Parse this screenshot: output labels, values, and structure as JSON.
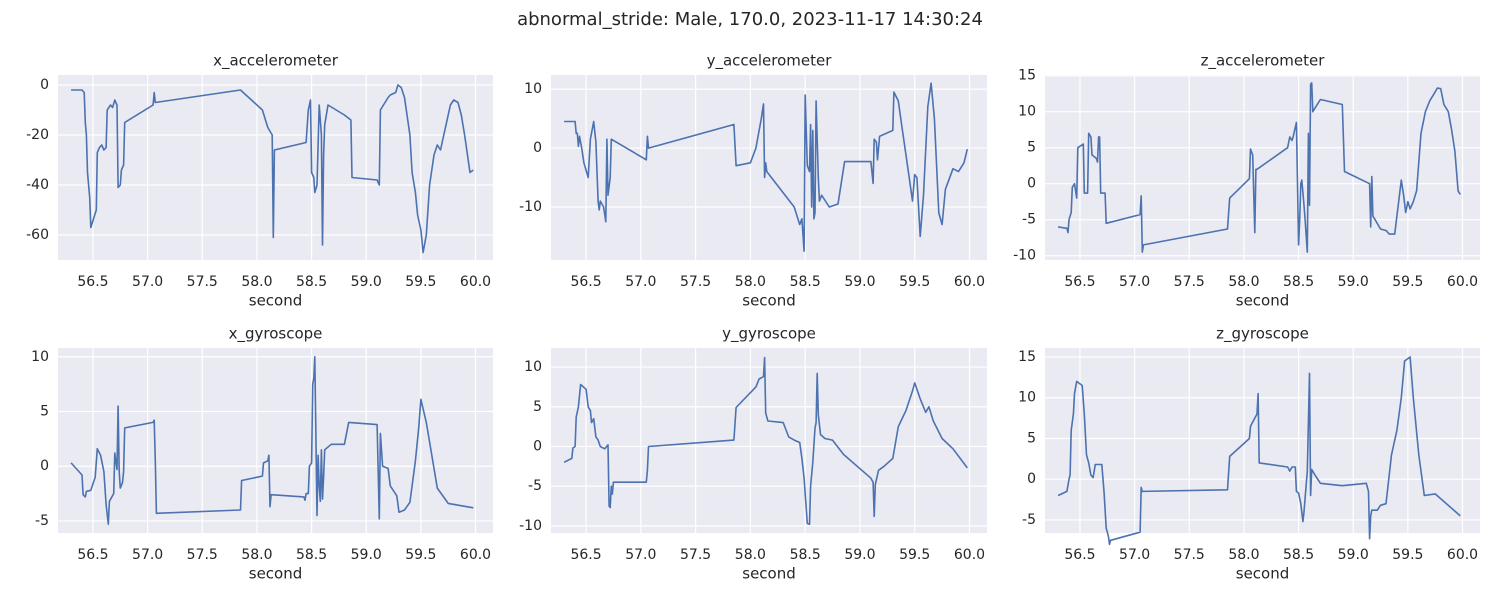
{
  "title": "abnormal_stride: Male, 170.0, 2023-11-17 14:30:24",
  "chart_data": [
    {
      "type": "line",
      "title": "x_accelerometer",
      "xlabel": "second",
      "color": "#4c72b0",
      "grid": true,
      "xlim": [
        56.18,
        60.16
      ],
      "ylim": [
        -70,
        4
      ],
      "xticks": [
        56.5,
        {
          "value": 57,
          "label": "57.0"
        },
        57.5,
        {
          "value": 58,
          "label": "58.0"
        },
        58.5,
        {
          "value": 59,
          "label": "59.0"
        },
        59.5,
        {
          "value": 60,
          "label": "60.0"
        }
      ],
      "yticks": [
        -60,
        -40,
        -20,
        0
      ],
      "x": [
        56.3,
        56.4,
        56.42,
        56.43,
        56.44,
        56.45,
        56.47,
        56.48,
        56.53,
        56.54,
        56.56,
        56.58,
        56.6,
        56.62,
        56.63,
        56.66,
        56.68,
        56.7,
        56.72,
        56.73,
        56.75,
        56.76,
        56.78,
        56.79,
        57.05,
        57.06,
        57.07,
        57.85,
        58.05,
        58.1,
        58.14,
        58.15,
        58.16,
        58.45,
        58.47,
        58.49,
        58.5,
        58.52,
        58.53,
        58.55,
        58.57,
        58.59,
        58.6,
        58.61,
        58.62,
        58.65,
        58.8,
        58.86,
        58.87,
        59.1,
        59.12,
        59.13,
        59.2,
        59.22,
        59.27,
        59.29,
        59.32,
        59.35,
        59.4,
        59.42,
        59.45,
        59.47,
        59.5,
        59.52,
        59.55,
        59.58,
        59.62,
        59.65,
        59.68,
        59.72,
        59.77,
        59.8,
        59.84,
        59.87,
        59.9,
        59.95,
        59.98
      ],
      "values": [
        -2,
        -2,
        -3,
        -15,
        -20,
        -35,
        -45,
        -57,
        -50,
        -27,
        -25,
        -24,
        -26,
        -25,
        -10,
        -8,
        -9,
        -6,
        -8,
        -41,
        -40,
        -34,
        -32,
        -15,
        -8,
        -3,
        -7,
        -2,
        -10,
        -17,
        -20,
        -61,
        -26,
        -23,
        -10,
        -6,
        -35,
        -37,
        -43,
        -40,
        -8,
        -20,
        -64,
        -28,
        -16,
        -8,
        -12,
        -14,
        -37,
        -38,
        -40,
        -10,
        -5,
        -4,
        -3,
        0,
        -1,
        -5,
        -20,
        -35,
        -43,
        -52,
        -58,
        -67,
        -60,
        -40,
        -28,
        -24,
        -26,
        -18,
        -8,
        -6,
        -7,
        -12,
        -20,
        -35,
        -34
      ]
    },
    {
      "type": "line",
      "title": "y_accelerometer",
      "xlabel": "second",
      "color": "#4c72b0",
      "grid": true,
      "xlim": [
        56.18,
        60.16
      ],
      "ylim": [
        -19,
        12.4
      ],
      "xticks": [
        56.5,
        {
          "value": 57,
          "label": "57.0"
        },
        57.5,
        {
          "value": 58,
          "label": "58.0"
        },
        58.5,
        {
          "value": 59,
          "label": "59.0"
        },
        59.5,
        {
          "value": 60,
          "label": "60.0"
        }
      ],
      "yticks": [
        -10,
        0,
        10
      ],
      "x": [
        56.3,
        56.4,
        56.41,
        56.42,
        56.43,
        56.44,
        56.46,
        56.48,
        56.52,
        56.54,
        56.57,
        56.59,
        56.61,
        56.62,
        56.63,
        56.66,
        56.68,
        56.69,
        56.7,
        56.72,
        56.73,
        57.05,
        57.06,
        57.07,
        57.85,
        57.87,
        58.0,
        58.05,
        58.1,
        58.12,
        58.13,
        58.14,
        58.15,
        58.4,
        58.45,
        58.47,
        58.49,
        58.5,
        58.52,
        58.54,
        58.55,
        58.56,
        58.57,
        58.58,
        58.59,
        58.6,
        58.62,
        58.63,
        58.65,
        58.72,
        58.8,
        58.86,
        59.1,
        59.12,
        59.13,
        59.15,
        59.16,
        59.18,
        59.3,
        59.31,
        59.35,
        59.38,
        59.45,
        59.48,
        59.5,
        59.52,
        59.55,
        59.58,
        59.62,
        59.65,
        59.68,
        59.72,
        59.75,
        59.78,
        59.85,
        59.9,
        59.95,
        59.98
      ],
      "values": [
        4.5,
        4.5,
        2.5,
        2.5,
        0.3,
        2,
        0,
        -2.5,
        -5,
        1.5,
        4.5,
        1,
        -9,
        -10.5,
        -9,
        -10,
        -12.5,
        1.5,
        -8,
        -5,
        1.5,
        -2,
        2,
        0,
        4,
        -3,
        -2.5,
        0,
        5,
        7.5,
        -5,
        -2.5,
        -4,
        -10,
        -13,
        -12,
        -17.5,
        9,
        -3,
        -4,
        4,
        -10,
        3,
        -12,
        -11,
        8,
        -5,
        -9,
        -8,
        -10,
        -9.5,
        -2.3,
        -2.3,
        -6,
        1.5,
        1,
        -2,
        2,
        3,
        9.5,
        8,
        4,
        -5,
        -9,
        -4.5,
        -5,
        -15,
        -8,
        7,
        11,
        5,
        -11,
        -13,
        -7,
        -3.5,
        -4,
        -2.5,
        -0.2
      ]
    },
    {
      "type": "line",
      "title": "z_accelerometer",
      "xlabel": "second",
      "color": "#4c72b0",
      "grid": true,
      "xlim": [
        56.18,
        60.16
      ],
      "ylim": [
        -10.6,
        15.1
      ],
      "xticks": [
        56.5,
        {
          "value": 57,
          "label": "57.0"
        },
        57.5,
        {
          "value": 58,
          "label": "58.0"
        },
        58.5,
        {
          "value": 59,
          "label": "59.0"
        },
        59.5,
        {
          "value": 60,
          "label": "60.0"
        }
      ],
      "yticks": [
        -10,
        -5,
        0,
        5,
        10,
        15
      ],
      "x": [
        56.3,
        56.38,
        56.39,
        56.4,
        56.42,
        56.43,
        56.45,
        56.47,
        56.48,
        56.53,
        56.54,
        56.57,
        56.58,
        56.6,
        56.61,
        56.65,
        56.66,
        56.67,
        56.68,
        56.69,
        56.73,
        56.74,
        57.05,
        57.06,
        57.07,
        57.08,
        57.85,
        57.87,
        58.05,
        58.06,
        58.08,
        58.1,
        58.11,
        58.12,
        58.4,
        58.42,
        58.44,
        58.45,
        58.48,
        58.5,
        58.51,
        58.52,
        58.53,
        58.55,
        58.56,
        58.58,
        58.59,
        58.6,
        58.61,
        58.62,
        58.63,
        58.65,
        58.7,
        58.9,
        58.92,
        59.15,
        59.16,
        59.17,
        59.18,
        59.2,
        59.25,
        59.3,
        59.33,
        59.38,
        59.42,
        59.44,
        59.46,
        59.48,
        59.5,
        59.52,
        59.55,
        59.58,
        59.62,
        59.66,
        59.7,
        59.74,
        59.77,
        59.8,
        59.83,
        59.87,
        59.9,
        59.93,
        59.96,
        59.98
      ],
      "values": [
        -6,
        -6.2,
        -6.8,
        -5,
        -4,
        -0.5,
        0,
        -2,
        5,
        5.5,
        -1.3,
        -1.3,
        7,
        6.5,
        4,
        3.5,
        3,
        6.5,
        6.5,
        -1.3,
        -1.3,
        -5.5,
        -4.3,
        -1.7,
        -9.5,
        -8.5,
        -6.3,
        -2,
        0.7,
        4.8,
        4,
        -6.8,
        2,
        2,
        5,
        6.5,
        6,
        6.5,
        8.5,
        -8.5,
        -5,
        0,
        0.5,
        -3,
        -5,
        -9.5,
        7,
        -3,
        13.8,
        14,
        10,
        10.5,
        11.7,
        11,
        1.7,
        0,
        -6,
        1,
        -4.5,
        -5,
        -6.3,
        -6.5,
        -7,
        -7,
        -2,
        0.5,
        -1.5,
        -4,
        -2.5,
        -3.5,
        -2.5,
        -1,
        7,
        10,
        11.5,
        12.5,
        13.3,
        13.2,
        11,
        10,
        7.5,
        4.5,
        -1,
        -1.5
      ]
    },
    {
      "type": "line",
      "title": "x_gyroscope",
      "xlabel": "second",
      "color": "#4c72b0",
      "grid": true,
      "xlim": [
        56.18,
        60.16
      ],
      "ylim": [
        -6.1,
        10.8
      ],
      "xticks": [
        56.5,
        {
          "value": 57,
          "label": "57.0"
        },
        57.5,
        {
          "value": 58,
          "label": "58.0"
        },
        58.5,
        {
          "value": 59,
          "label": "59.0"
        },
        59.5,
        {
          "value": 60,
          "label": "60.0"
        }
      ],
      "yticks": [
        -5,
        0,
        5,
        10
      ],
      "x": [
        56.3,
        56.4,
        56.41,
        56.43,
        56.44,
        56.48,
        56.52,
        56.54,
        56.57,
        56.6,
        56.62,
        56.64,
        56.65,
        56.69,
        56.7,
        56.72,
        56.73,
        56.74,
        56.75,
        56.77,
        56.78,
        56.79,
        57.05,
        57.06,
        57.07,
        57.08,
        57.85,
        57.86,
        58.05,
        58.06,
        58.1,
        58.11,
        58.12,
        58.13,
        58.43,
        58.44,
        58.45,
        58.47,
        58.48,
        58.5,
        58.51,
        58.52,
        58.53,
        58.55,
        58.56,
        58.57,
        58.58,
        58.59,
        58.6,
        58.61,
        58.62,
        58.68,
        58.8,
        58.84,
        59.1,
        59.12,
        59.13,
        59.15,
        59.2,
        59.22,
        59.28,
        59.3,
        59.35,
        59.4,
        59.45,
        59.48,
        59.5,
        59.55,
        59.6,
        59.65,
        59.75,
        59.98
      ],
      "values": [
        0.3,
        -0.8,
        -2.6,
        -2.8,
        -2.3,
        -2.2,
        -1,
        1.6,
        1,
        -0.5,
        -3.5,
        -5.3,
        -3.2,
        -2.5,
        1.2,
        -0.3,
        5.5,
        -0.5,
        -2,
        -1.5,
        -0.5,
        3.5,
        4,
        4.2,
        0.5,
        -4.3,
        -4,
        -1.3,
        -0.9,
        0.3,
        0.5,
        1,
        -3.7,
        -2.6,
        -2.8,
        -3.1,
        -2.5,
        -2.5,
        0,
        0.3,
        7.5,
        8,
        10,
        -4.5,
        1,
        -1.8,
        -3.2,
        1.5,
        -3,
        -1,
        1.5,
        2,
        2,
        4,
        3.8,
        -4.8,
        3,
        0,
        -0.2,
        -1.8,
        -2.7,
        -4.2,
        -4,
        -3.3,
        0.5,
        3.5,
        6.1,
        4,
        1,
        -2,
        -3.4,
        -3.8
      ]
    },
    {
      "type": "line",
      "title": "y_gyroscope",
      "xlabel": "second",
      "color": "#4c72b0",
      "grid": true,
      "xlim": [
        56.18,
        60.16
      ],
      "ylim": [
        -10.9,
        12.4
      ],
      "xticks": [
        56.5,
        {
          "value": 57,
          "label": "57.0"
        },
        57.5,
        {
          "value": 58,
          "label": "58.0"
        },
        58.5,
        {
          "value": 59,
          "label": "59.0"
        },
        59.5,
        {
          "value": 60,
          "label": "60.0"
        }
      ],
      "yticks": [
        -10,
        -5,
        0,
        5,
        10
      ],
      "x": [
        56.3,
        56.37,
        56.38,
        56.4,
        56.41,
        56.43,
        56.45,
        56.5,
        56.52,
        56.54,
        56.55,
        56.57,
        56.59,
        56.61,
        56.63,
        56.67,
        56.7,
        56.71,
        56.72,
        56.73,
        56.74,
        56.75,
        57.05,
        57.06,
        57.07,
        57.85,
        57.87,
        58.05,
        58.08,
        58.12,
        58.13,
        58.14,
        58.16,
        58.3,
        58.35,
        58.4,
        58.45,
        58.47,
        58.49,
        58.5,
        58.52,
        58.54,
        58.55,
        58.57,
        58.59,
        58.6,
        58.61,
        58.62,
        58.64,
        58.68,
        58.75,
        58.85,
        59.1,
        59.12,
        59.13,
        59.14,
        59.17,
        59.22,
        59.3,
        59.35,
        59.42,
        59.48,
        59.5,
        59.55,
        59.6,
        59.63,
        59.67,
        59.75,
        59.85,
        59.98
      ],
      "values": [
        -2,
        -1.5,
        -0.2,
        0,
        3.7,
        5,
        7.8,
        7.2,
        5,
        4.5,
        3,
        3.5,
        1.2,
        0.8,
        0,
        -0.3,
        0.2,
        -7.5,
        -7.7,
        -5,
        -6,
        -4.5,
        -4.5,
        -3,
        0,
        0.8,
        4.9,
        7.5,
        8.5,
        8.8,
        11.2,
        4.2,
        3.2,
        3,
        1.2,
        0.8,
        0.5,
        -1.5,
        -4,
        -6,
        -9.7,
        -9.8,
        -5,
        -2,
        2.3,
        3,
        9.2,
        4,
        1.5,
        1,
        0.8,
        -1,
        -4,
        -4.5,
        -8.8,
        -4.8,
        -3,
        -2.5,
        -1.5,
        2.5,
        4.5,
        7,
        8,
        6,
        4.3,
        5,
        3.2,
        1,
        -0.3,
        -2.7
      ]
    },
    {
      "type": "line",
      "title": "z_gyroscope",
      "xlabel": "second",
      "color": "#4c72b0",
      "grid": true,
      "xlim": [
        56.18,
        60.16
      ],
      "ylim": [
        -6.6,
        16.1
      ],
      "xticks": [
        56.5,
        {
          "value": 57,
          "label": "57.0"
        },
        57.5,
        {
          "value": 58,
          "label": "58.0"
        },
        58.5,
        {
          "value": 59,
          "label": "59.0"
        },
        59.5,
        {
          "value": 60,
          "label": "60.0"
        }
      ],
      "yticks": [
        -5,
        0,
        5,
        10,
        15
      ],
      "x": [
        56.3,
        56.38,
        56.4,
        56.41,
        56.42,
        56.44,
        56.45,
        56.47,
        56.52,
        56.54,
        56.56,
        56.58,
        56.6,
        56.62,
        56.64,
        56.7,
        56.72,
        56.74,
        56.76,
        56.77,
        56.78,
        57.05,
        57.06,
        57.07,
        57.85,
        57.87,
        58.05,
        58.06,
        58.1,
        58.12,
        58.13,
        58.14,
        58.4,
        58.42,
        58.44,
        58.47,
        58.48,
        58.5,
        58.52,
        58.54,
        58.55,
        58.58,
        58.6,
        58.61,
        58.62,
        58.65,
        58.7,
        58.9,
        59.12,
        59.14,
        59.15,
        59.16,
        59.17,
        59.22,
        59.25,
        59.3,
        59.35,
        59.4,
        59.44,
        59.47,
        59.52,
        59.55,
        59.6,
        59.65,
        59.75,
        59.98
      ],
      "values": [
        -2,
        -1.5,
        0,
        0.5,
        6,
        8,
        10.5,
        12,
        11.5,
        8,
        3,
        2,
        0.5,
        0.2,
        1.8,
        1.8,
        -1.5,
        -6,
        -7,
        -8,
        -7.5,
        -6.5,
        -1,
        -1.5,
        -1.3,
        2.8,
        5,
        6.5,
        7.5,
        8,
        10.5,
        2,
        1.5,
        1,
        1.5,
        1.5,
        -1.5,
        -1.7,
        -3,
        -5.2,
        -4,
        1,
        13,
        -2,
        1.2,
        0.5,
        -0.5,
        -0.8,
        -0.5,
        -1.5,
        -7.3,
        -4.5,
        -3.8,
        -3.8,
        -3.2,
        -3,
        3,
        6,
        10,
        14.5,
        15,
        10,
        3,
        -2,
        -1.8,
        -4.5
      ]
    }
  ]
}
